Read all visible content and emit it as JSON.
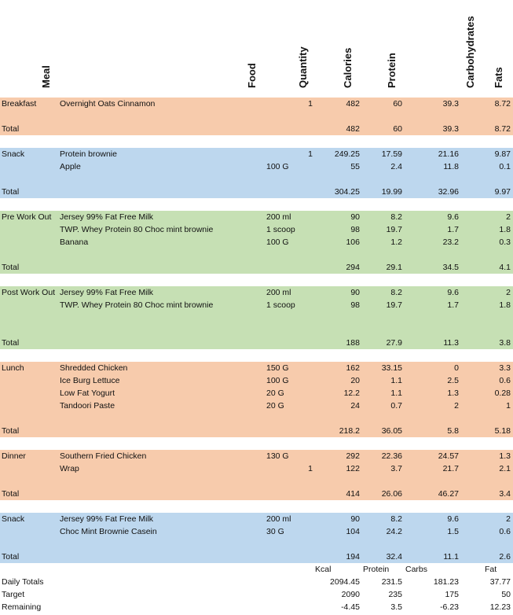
{
  "headers": {
    "meal": "Meal",
    "food": "Food",
    "quantity": "Quantity",
    "calories": "Calories",
    "protein": "Protein",
    "carbohydrates": "Carbohydrates",
    "fats": "Fats"
  },
  "rows": [
    {
      "band": "orange",
      "meal": "Breakfast",
      "food": "Overnight Oats Cinnamon",
      "qty": "",
      "qn": "1",
      "cal": "482",
      "pro": "60",
      "carb": "39.3",
      "fat": "8.72"
    },
    {
      "band": "orange",
      "meal": "",
      "food": "",
      "qty": "",
      "qn": "",
      "cal": "",
      "pro": "",
      "carb": "",
      "fat": ""
    },
    {
      "band": "orange",
      "meal": "Total",
      "food": "",
      "qty": "",
      "qn": "",
      "cal": "482",
      "pro": "60",
      "carb": "39.3",
      "fat": "8.72"
    },
    {
      "band": "white",
      "meal": "",
      "food": "",
      "qty": "",
      "qn": "",
      "cal": "",
      "pro": "",
      "carb": "",
      "fat": ""
    },
    {
      "band": "blue",
      "meal": "Snack",
      "food": "Protein brownie",
      "qty": "",
      "qn": "1",
      "cal": "249.25",
      "pro": "17.59",
      "carb": "21.16",
      "fat": "9.87"
    },
    {
      "band": "blue",
      "meal": "",
      "food": "Apple",
      "qty": "100 G",
      "qn": "",
      "cal": "55",
      "pro": "2.4",
      "carb": "11.8",
      "fat": "0.1"
    },
    {
      "band": "blue",
      "meal": "",
      "food": "",
      "qty": "",
      "qn": "",
      "cal": "",
      "pro": "",
      "carb": "",
      "fat": ""
    },
    {
      "band": "blue",
      "meal": "Total",
      "food": "",
      "qty": "",
      "qn": "",
      "cal": "304.25",
      "pro": "19.99",
      "carb": "32.96",
      "fat": "9.97"
    },
    {
      "band": "white",
      "meal": "",
      "food": "",
      "qty": "",
      "qn": "",
      "cal": "",
      "pro": "",
      "carb": "",
      "fat": ""
    },
    {
      "band": "green",
      "meal": "Pre Work Out",
      "food": "Jersey 99% Fat Free Milk",
      "qty": "200 ml",
      "qn": "",
      "cal": "90",
      "pro": "8.2",
      "carb": "9.6",
      "fat": "2"
    },
    {
      "band": "green",
      "meal": "",
      "food": "TWP. Whey Protein 80 Choc mint brownie",
      "qty": "1 scoop",
      "qn": "",
      "cal": "98",
      "pro": "19.7",
      "carb": "1.7",
      "fat": "1.8"
    },
    {
      "band": "green",
      "meal": "",
      "food": "Banana",
      "qty": "100 G",
      "qn": "",
      "cal": "106",
      "pro": "1.2",
      "carb": "23.2",
      "fat": "0.3"
    },
    {
      "band": "green",
      "meal": "",
      "food": "",
      "qty": "",
      "qn": "",
      "cal": "",
      "pro": "",
      "carb": "",
      "fat": ""
    },
    {
      "band": "green",
      "meal": "Total",
      "food": "",
      "qty": "",
      "qn": "",
      "cal": "294",
      "pro": "29.1",
      "carb": "34.5",
      "fat": "4.1"
    },
    {
      "band": "white",
      "meal": "",
      "food": "",
      "qty": "",
      "qn": "",
      "cal": "",
      "pro": "",
      "carb": "",
      "fat": ""
    },
    {
      "band": "green",
      "meal": "Post Work Out",
      "food": "Jersey 99% Fat Free Milk",
      "qty": "200 ml",
      "qn": "",
      "cal": "90",
      "pro": "8.2",
      "carb": "9.6",
      "fat": "2"
    },
    {
      "band": "green",
      "meal": "",
      "food": "TWP. Whey Protein 80 Choc mint brownie",
      "qty": "1 scoop",
      "qn": "",
      "cal": "98",
      "pro": "19.7",
      "carb": "1.7",
      "fat": "1.8"
    },
    {
      "band": "green",
      "meal": "",
      "food": "",
      "qty": "",
      "qn": "",
      "cal": "",
      "pro": "",
      "carb": "",
      "fat": ""
    },
    {
      "band": "green",
      "meal": "",
      "food": "",
      "qty": "",
      "qn": "",
      "cal": "",
      "pro": "",
      "carb": "",
      "fat": ""
    },
    {
      "band": "green",
      "meal": "Total",
      "food": "",
      "qty": "",
      "qn": "",
      "cal": "188",
      "pro": "27.9",
      "carb": "11.3",
      "fat": "3.8"
    },
    {
      "band": "white",
      "meal": "",
      "food": "",
      "qty": "",
      "qn": "",
      "cal": "",
      "pro": "",
      "carb": "",
      "fat": ""
    },
    {
      "band": "orange",
      "meal": "Lunch",
      "food": "Shredded Chicken",
      "qty": "150 G",
      "qn": "",
      "cal": "162",
      "pro": "33.15",
      "carb": "0",
      "fat": "3.3"
    },
    {
      "band": "orange",
      "meal": "",
      "food": "Ice Burg Lettuce",
      "qty": "100 G",
      "qn": "",
      "cal": "20",
      "pro": "1.1",
      "carb": "2.5",
      "fat": "0.6"
    },
    {
      "band": "orange",
      "meal": "",
      "food": "Low Fat Yogurt",
      "qty": "20 G",
      "qn": "",
      "cal": "12.2",
      "pro": "1.1",
      "carb": "1.3",
      "fat": "0.28"
    },
    {
      "band": "orange",
      "meal": "",
      "food": "Tandoori Paste",
      "qty": "20 G",
      "qn": "",
      "cal": "24",
      "pro": "0.7",
      "carb": "2",
      "fat": "1"
    },
    {
      "band": "orange",
      "meal": "",
      "food": "",
      "qty": "",
      "qn": "",
      "cal": "",
      "pro": "",
      "carb": "",
      "fat": ""
    },
    {
      "band": "orange",
      "meal": "Total",
      "food": "",
      "qty": "",
      "qn": "",
      "cal": "218.2",
      "pro": "36.05",
      "carb": "5.8",
      "fat": "5.18"
    },
    {
      "band": "white",
      "meal": "",
      "food": "",
      "qty": "",
      "qn": "",
      "cal": "",
      "pro": "",
      "carb": "",
      "fat": ""
    },
    {
      "band": "orange",
      "meal": "Dinner",
      "food": "Southern Fried Chicken",
      "qty": "130 G",
      "qn": "",
      "cal": "292",
      "pro": "22.36",
      "carb": "24.57",
      "fat": "1.3"
    },
    {
      "band": "orange",
      "meal": "",
      "food": "Wrap",
      "qty": "",
      "qn": "1",
      "cal": "122",
      "pro": "3.7",
      "carb": "21.7",
      "fat": "2.1"
    },
    {
      "band": "orange",
      "meal": "",
      "food": "",
      "qty": "",
      "qn": "",
      "cal": "",
      "pro": "",
      "carb": "",
      "fat": ""
    },
    {
      "band": "orange",
      "meal": "Total",
      "food": "",
      "qty": "",
      "qn": "",
      "cal": "414",
      "pro": "26.06",
      "carb": "46.27",
      "fat": "3.4"
    },
    {
      "band": "white",
      "meal": "",
      "food": "",
      "qty": "",
      "qn": "",
      "cal": "",
      "pro": "",
      "carb": "",
      "fat": ""
    },
    {
      "band": "blue",
      "meal": "Snack",
      "food": "Jersey 99% Fat Free Milk",
      "qty": "200 ml",
      "qn": "",
      "cal": "90",
      "pro": "8.2",
      "carb": "9.6",
      "fat": "2"
    },
    {
      "band": "blue",
      "meal": "",
      "food": "Choc Mint Brownie Casein",
      "qty": "30 G",
      "qn": "",
      "cal": "104",
      "pro": "24.2",
      "carb": "1.5",
      "fat": "0.6"
    },
    {
      "band": "blue",
      "meal": "",
      "food": "",
      "qty": "",
      "qn": "",
      "cal": "",
      "pro": "",
      "carb": "",
      "fat": ""
    },
    {
      "band": "blue",
      "meal": "Total",
      "food": "",
      "qty": "",
      "qn": "",
      "cal": "194",
      "pro": "32.4",
      "carb": "11.1",
      "fat": "2.6"
    }
  ],
  "summary": {
    "labels": {
      "kcal": "Kcal",
      "protein": "Protein",
      "carbs": "Carbs",
      "fat": "Fat"
    },
    "daily_totals": {
      "label": "Daily Totals",
      "kcal": "2094.45",
      "protein": "231.5",
      "carbs": "181.23",
      "fat": "37.77"
    },
    "target": {
      "label": "Target",
      "kcal": "2090",
      "protein": "235",
      "carbs": "175",
      "fat": "50"
    },
    "remaining": {
      "label": "Remaining",
      "kcal": "-4.45",
      "protein": "3.5",
      "carbs": "-6.23",
      "fat": "12.23"
    }
  },
  "colors": {
    "orange": "#f7cbac",
    "blue": "#bdd7ee",
    "green": "#c6e0b4"
  }
}
